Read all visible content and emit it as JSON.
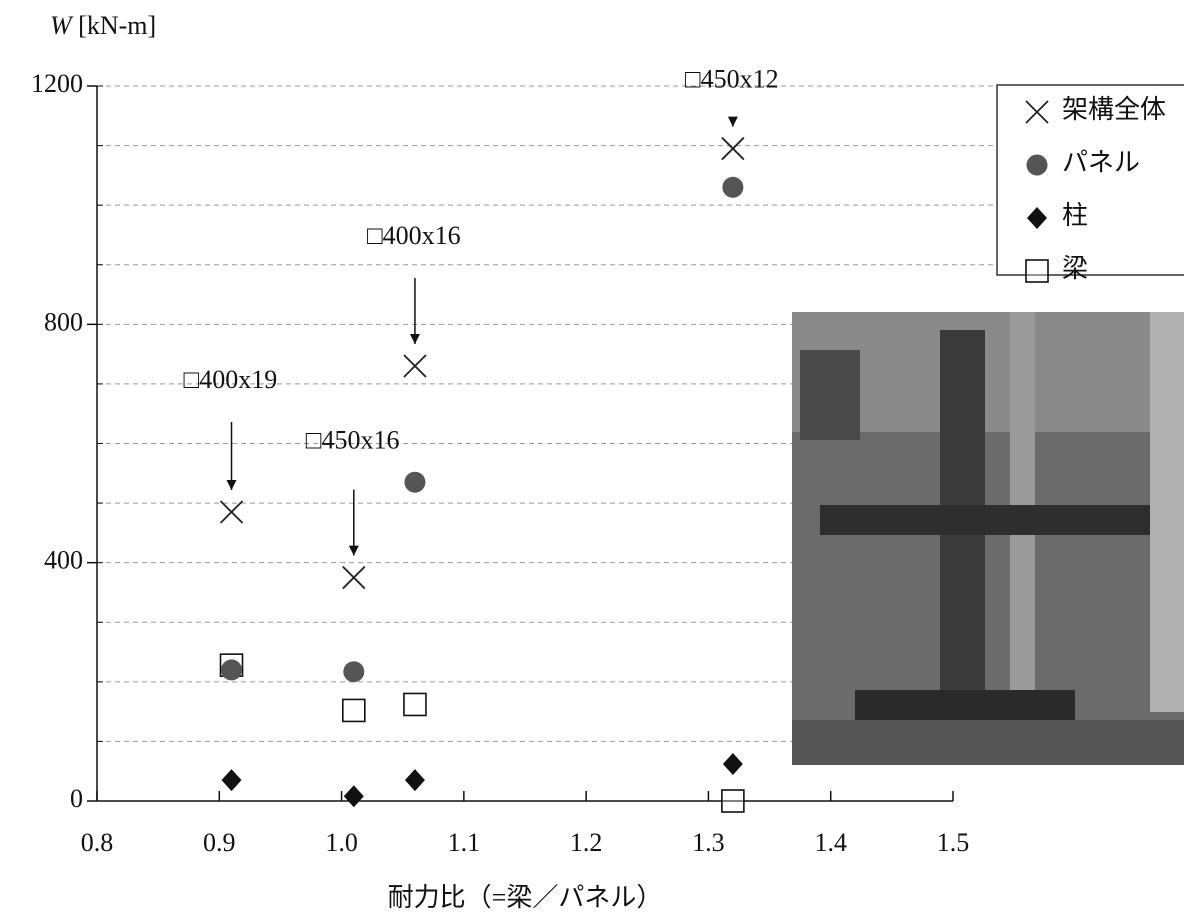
{
  "chart_data": {
    "type": "scatter",
    "y_label_symbol": "W",
    "y_label_unit": "[kN-m]",
    "x_label": "耐力比（=梁／パネル）",
    "x": [
      0.91,
      1.01,
      1.06,
      1.32
    ],
    "series": [
      {
        "name": "架構全体",
        "marker": "x",
        "color": "#222222",
        "values": [
          485,
          375,
          730,
          1095
        ]
      },
      {
        "name": "パネル",
        "marker": "circle",
        "color": "#555555",
        "values": [
          220,
          217,
          535,
          1030
        ]
      },
      {
        "name": "柱",
        "marker": "diamond",
        "color": "#111111",
        "values": [
          35,
          8,
          35,
          62
        ]
      },
      {
        "name": "梁",
        "marker": "square",
        "color": "#111111",
        "values": [
          228,
          152,
          162,
          0
        ]
      }
    ],
    "annotations": [
      "□400x19",
      "□450x16",
      "□400x16",
      "□450x12"
    ],
    "xlim": [
      0.8,
      1.5
    ],
    "xticks": [
      0.8,
      0.9,
      {
        "value": 1,
        "label": "1.0"
      },
      1.1,
      1.2,
      1.3,
      1.4,
      1.5
    ],
    "ylim": [
      0,
      1200
    ],
    "yticks": [
      0,
      400,
      800,
      1200
    ],
    "ygrid": [
      100,
      200,
      300,
      400,
      500,
      600,
      700,
      800,
      900,
      1000,
      1100,
      1200
    ],
    "grid": true,
    "legend": "upper right"
  }
}
